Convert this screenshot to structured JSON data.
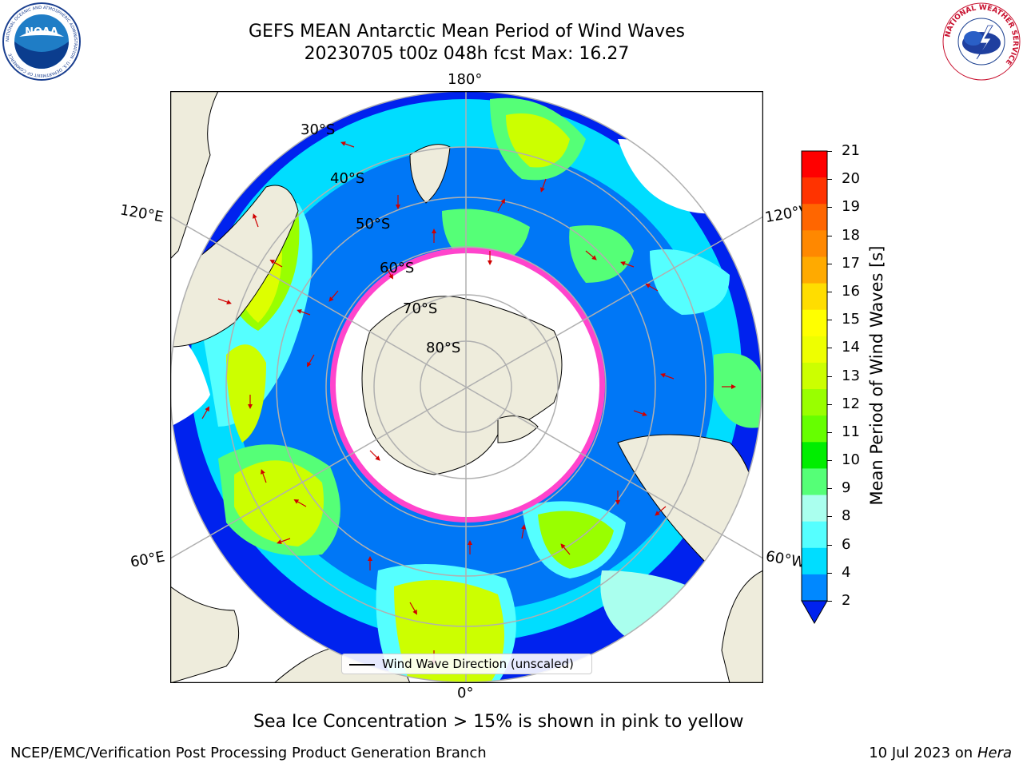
{
  "title": {
    "line1": "GEFS MEAN Antarctic Mean Period of Wind Waves",
    "line2": "20230705 t00z 048h fcst   Max: 16.27"
  },
  "longitude_labels": {
    "top": "180°",
    "bottom": "0°",
    "upper_left": "120°E",
    "upper_right": "120°W",
    "lower_left": "60°E",
    "lower_right": "60°W"
  },
  "latitude_labels": [
    "30°S",
    "40°S",
    "50°S",
    "60°S",
    "70°S",
    "80°S"
  ],
  "colorbar": {
    "label": "Mean Period of Wind Waves [s]",
    "ticks": [
      "21",
      "20",
      "19",
      "18",
      "17",
      "16",
      "15",
      "14",
      "13",
      "12",
      "11",
      "10",
      "9",
      "8",
      "6",
      "4",
      "2"
    ],
    "colors": [
      "#ff0000",
      "#ff3300",
      "#ff6600",
      "#ff8800",
      "#ffaa00",
      "#ffdd00",
      "#ffff00",
      "#eeff00",
      "#ccff00",
      "#99ff00",
      "#66ff00",
      "#00ee00",
      "#55ff77",
      "#aaffee",
      "#55ffff",
      "#00ddff",
      "#0088ff"
    ],
    "extend_color": "#0022ee"
  },
  "legend": {
    "label": "Wind Wave Direction (unscaled)"
  },
  "caption": "Sea Ice Concentration > 15% is shown in pink to yellow",
  "footer": {
    "left": "NCEP/EMC/Verification Post Processing Product Generation Branch",
    "right_date": "10 Jul 2023 on ",
    "right_host": "Hera"
  },
  "logos": {
    "noaa": {
      "text": "NOAA",
      "ring": "NATIONAL OCEANIC AND ATMOSPHERIC ADMINISTRATION · U.S. DEPARTMENT OF COMMERCE"
    },
    "nws": {
      "ring": "NATIONAL WEATHER SERVICE"
    }
  },
  "colors": {
    "land": "#eeecdc",
    "ocean_low": "#0022ee",
    "ice_edge": "#ff44cc"
  }
}
